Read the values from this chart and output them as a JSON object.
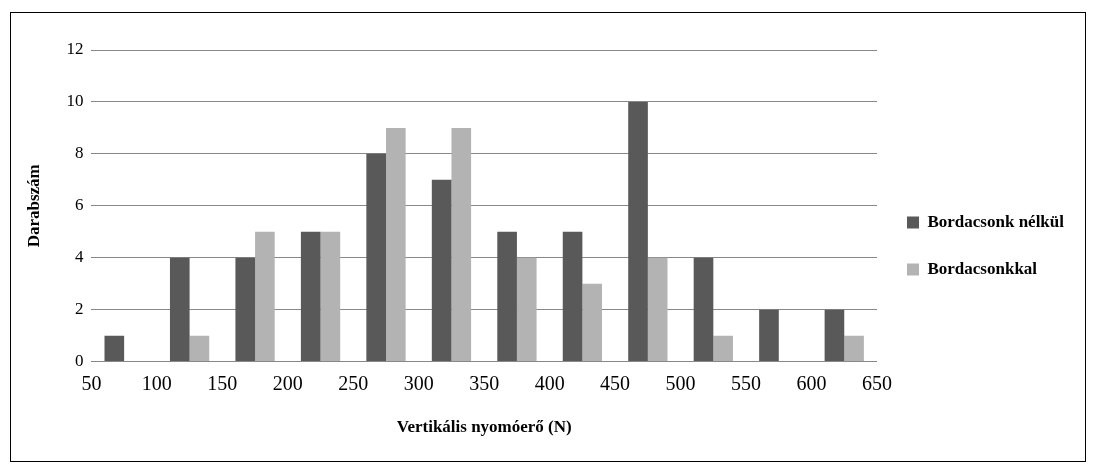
{
  "chart_data": {
    "type": "histogram",
    "xlabel": "Vertikális nyomóerő (N)",
    "ylabel": "Darabszám",
    "bins": [
      50,
      100,
      150,
      200,
      250,
      300,
      350,
      400,
      450,
      500,
      550,
      600,
      650
    ],
    "xlim": [
      50,
      650
    ],
    "xticks": [
      50,
      100,
      150,
      200,
      250,
      300,
      350,
      400,
      450,
      500,
      550,
      600,
      650
    ],
    "ylim": [
      0,
      12
    ],
    "yticks": [
      0,
      2,
      4,
      6,
      8,
      10,
      12
    ],
    "grid": "y",
    "legend": "right",
    "series": [
      {
        "name": "Bordacsonk nélkül",
        "color": "#595959",
        "values": [
          1,
          4,
          4,
          5,
          8,
          7,
          5,
          5,
          10,
          4,
          2,
          2
        ]
      },
      {
        "name": "Bordacsonkkal",
        "color": "#b3b3b3",
        "values": [
          0,
          1,
          5,
          5,
          9,
          9,
          4,
          3,
          4,
          1,
          0,
          1
        ]
      }
    ]
  }
}
